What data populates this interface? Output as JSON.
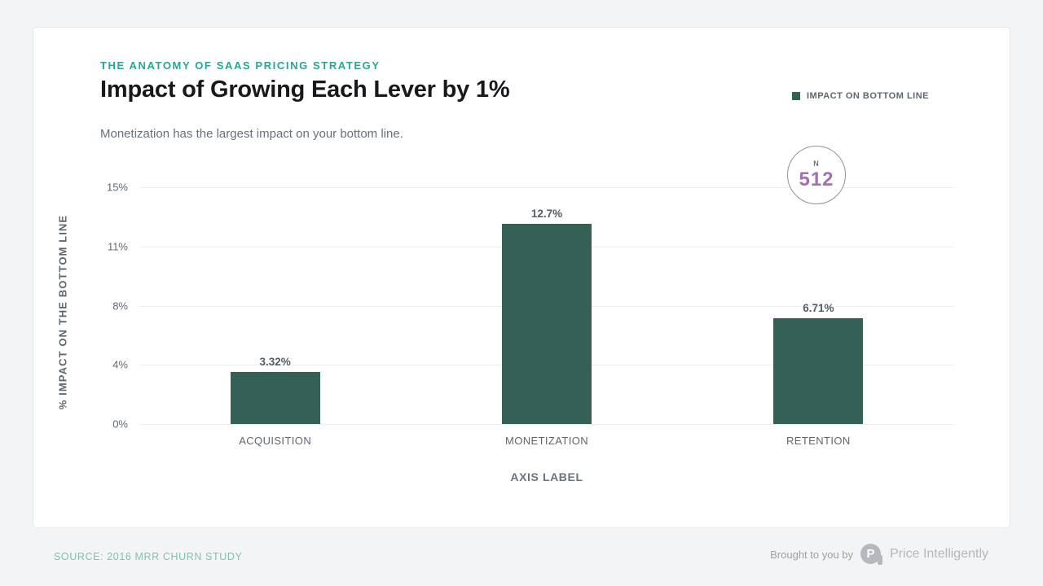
{
  "page": {
    "background_color": "#f3f4f6",
    "card_color": "#ffffff"
  },
  "header": {
    "kicker": "THE ANATOMY OF SAAS PRICING STRATEGY",
    "title": "Impact of Growing Each Lever by 1%",
    "subtitle": "Monetization has the largest impact on your bottom line.",
    "kicker_color": "#29a593"
  },
  "legend": {
    "label": "IMPACT ON BOTTOM LINE",
    "swatch_color": "#356055",
    "position": "top-right"
  },
  "sample_badge": {
    "prefix": "N",
    "value": "512",
    "value_color": "#a36fb4"
  },
  "chart_data": {
    "type": "bar",
    "title": "Impact of Growing Each Lever by 1%",
    "categories": [
      "ACQUISITION",
      "MONETIZATION",
      "RETENTION"
    ],
    "values": [
      3.32,
      12.7,
      6.71
    ],
    "value_labels": [
      "3.32%",
      "12.7%",
      "6.71%"
    ],
    "series_name": "IMPACT ON BOTTOM LINE",
    "xlabel": "AXIS LABEL",
    "ylabel": "% IMPACT ON THE BOTTOM LINE",
    "ylim": [
      0,
      15
    ],
    "yticks": [
      {
        "value": 0,
        "label": "0%"
      },
      {
        "value": 3.75,
        "label": "4%"
      },
      {
        "value": 7.5,
        "label": "8%"
      },
      {
        "value": 11.25,
        "label": "11%"
      },
      {
        "value": 15,
        "label": "15%"
      }
    ],
    "grid": true,
    "bar_color": "#356055",
    "legend_position": "top-right"
  },
  "footer": {
    "source": "SOURCE: 2016 MRR CHURN STUDY",
    "brought_by": "Brought to you by",
    "brand": "Price Intelligently",
    "logo_icon": "price-intelligently-mark",
    "logo_letter": "P"
  }
}
